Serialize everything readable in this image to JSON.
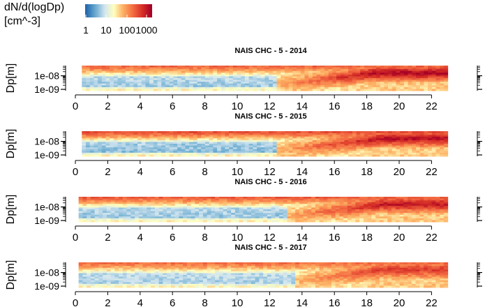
{
  "legend": {
    "title_line1": "dN/d(logDp)",
    "title_line2": "[cm^-3]",
    "tick_labels": [
      "1",
      "10",
      "100",
      "1000"
    ],
    "colors": [
      "#2166ac",
      "#67a9cf",
      "#d1e5f0",
      "#ffffbf",
      "#fdae61",
      "#f46d43",
      "#d73027",
      "#a50026"
    ]
  },
  "chart_data": [
    {
      "type": "heatmap",
      "title": "NAIS CHC - 5 - 2014",
      "ylabel": "Dp[m]",
      "xlabel": "",
      "x_ticks": [
        0,
        2,
        4,
        6,
        8,
        10,
        12,
        14,
        16,
        18,
        20,
        22
      ],
      "y_ticks": [
        "1e-08",
        "1e-09"
      ],
      "x_range": [
        0.4,
        23
      ],
      "xlim": [
        -0.5,
        23.5
      ],
      "y_scale": "log",
      "color_scale": "log",
      "event_start_hour": 12.5,
      "event_peak_hour": 18.5,
      "event_strength": 1.0,
      "background_strength": 0.85
    },
    {
      "type": "heatmap",
      "title": "NAIS CHC - 5 - 2015",
      "ylabel": "Dp[m]",
      "xlabel": "",
      "x_ticks": [
        0,
        2,
        4,
        6,
        8,
        10,
        12,
        14,
        16,
        18,
        20,
        22
      ],
      "y_ticks": [
        "1e-08",
        "1e-09"
      ],
      "x_range": [
        0.4,
        23
      ],
      "xlim": [
        -0.5,
        23.5
      ],
      "y_scale": "log",
      "color_scale": "log",
      "event_start_hour": 12.5,
      "event_peak_hour": 19,
      "event_strength": 0.95,
      "background_strength": 1.0
    },
    {
      "type": "heatmap",
      "title": "NAIS CHC - 5 - 2016",
      "ylabel": "Dp[m]",
      "xlabel": "",
      "x_ticks": [
        0,
        2,
        4,
        6,
        8,
        10,
        12,
        14,
        16,
        18,
        20,
        22
      ],
      "y_ticks": [
        "1e-08",
        "1e-09"
      ],
      "x_range": [
        0.2,
        23
      ],
      "xlim": [
        -0.5,
        23.5
      ],
      "y_scale": "log",
      "color_scale": "log",
      "event_start_hour": 13,
      "event_peak_hour": 19,
      "event_strength": 0.9,
      "background_strength": 0.9
    },
    {
      "type": "heatmap",
      "title": "NAIS CHC - 5 - 2017",
      "ylabel": "Dp[m]",
      "xlabel": "",
      "x_ticks": [
        0,
        2,
        4,
        6,
        8,
        10,
        12,
        14,
        16,
        18,
        20,
        22
      ],
      "y_ticks": [
        "1e-08",
        "1e-09"
      ],
      "x_range": [
        0.2,
        23
      ],
      "xlim": [
        -0.5,
        23.5
      ],
      "y_scale": "log",
      "color_scale": "log",
      "event_start_hour": 13.5,
      "event_peak_hour": 19,
      "event_strength": 0.7,
      "background_strength": 0.8
    }
  ]
}
